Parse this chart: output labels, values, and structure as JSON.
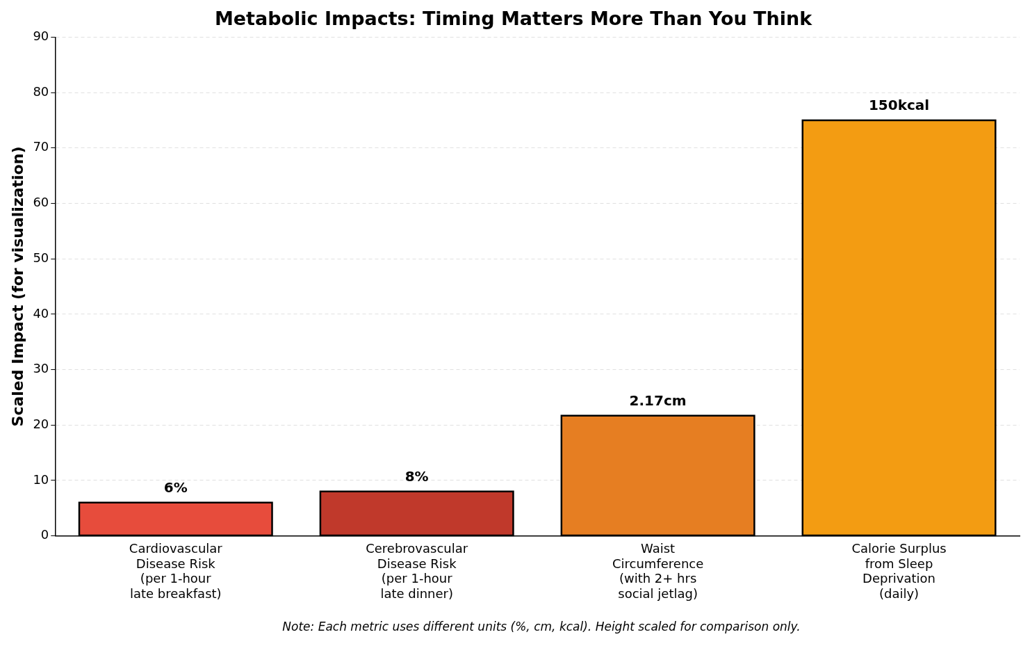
{
  "chart_data": {
    "type": "bar",
    "title": "Metabolic Impacts: Timing Matters More Than You Think",
    "ylabel": "Scaled Impact (for visualization)",
    "categories": [
      "Cardiovascular\nDisease Risk\n(per 1-hour\nlate breakfast)",
      "Cerebrovascular\nDisease Risk\n(per 1-hour\nlate dinner)",
      "Waist\nCircumference\n(with 2+ hrs\nsocial jetlag)",
      "Calorie Surplus\nfrom Sleep\nDeprivation\n(daily)"
    ],
    "values": [
      6,
      8,
      21.7,
      75
    ],
    "colors": [
      "#e74c3c",
      "#c0392b",
      "#e67e22",
      "#f39c12"
    ],
    "ylim": [
      0,
      90
    ],
    "yticks": [
      0,
      10,
      20,
      30,
      40,
      50,
      60,
      70,
      80,
      90
    ],
    "grid": "y",
    "annotations": [
      {
        "text": "6%",
        "x": "Cardiovascular\nDisease Risk\n(per 1-hour\nlate breakfast)",
        "y": 6
      },
      {
        "text": "8%",
        "x": "Cerebrovascular\nDisease Risk\n(per 1-hour\nlate dinner)",
        "y": 8
      },
      {
        "text": "2.17cm",
        "x": "Waist\nCircumference\n(with 2+ hrs\nsocial jetlag)",
        "y": 21.7
      },
      {
        "text": "150kcal",
        "x": "Calorie Surplus\nfrom Sleep\nDeprivation\n(daily)",
        "y": 75
      },
      "Note: Each metric uses different units (%, cm, kcal). Height scaled for comparison only."
    ]
  }
}
